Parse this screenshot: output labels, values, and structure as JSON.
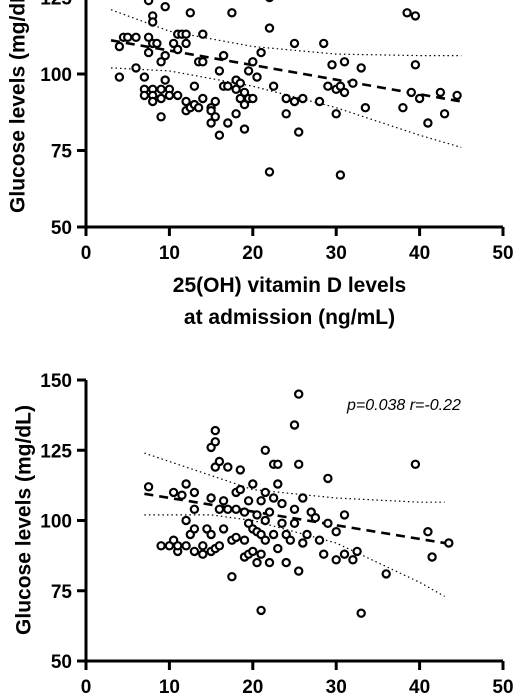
{
  "chart_data": [
    {
      "type": "scatter",
      "title": "",
      "xlabel_lines": [
        "25(OH) vitamin D levels",
        "at admission (ng/mL)"
      ],
      "ylabel": "Glucose levels (mg/dL)",
      "xlim": [
        0,
        50
      ],
      "ylim": [
        50,
        150
      ],
      "x_ticks": [
        "0",
        "10",
        "20",
        "30",
        "40",
        "50"
      ],
      "y_ticks": [
        "50",
        "75",
        "100",
        "125"
      ],
      "annotation": "",
      "regression": {
        "x": [
          3,
          45
        ],
        "y": [
          111,
          91
        ]
      },
      "ci_upper": [
        [
          3,
          121
        ],
        [
          10,
          114
        ],
        [
          20,
          109
        ],
        [
          30,
          106.5
        ],
        [
          40,
          106
        ],
        [
          45,
          106
        ]
      ],
      "ci_lower": [
        [
          3,
          102
        ],
        [
          10,
          101
        ],
        [
          20,
          96
        ],
        [
          30,
          89
        ],
        [
          40,
          80
        ],
        [
          45,
          76
        ]
      ],
      "points": [
        [
          4,
          99
        ],
        [
          4,
          109
        ],
        [
          4.5,
          112
        ],
        [
          5,
          112
        ],
        [
          6,
          102
        ],
        [
          6,
          112
        ],
        [
          7,
          99
        ],
        [
          7,
          95
        ],
        [
          7,
          93
        ],
        [
          7.5,
          124
        ],
        [
          7.5,
          112
        ],
        [
          7.5,
          107
        ],
        [
          8,
          119
        ],
        [
          8,
          117
        ],
        [
          8,
          110
        ],
        [
          8,
          95
        ],
        [
          8,
          93
        ],
        [
          8,
          91
        ],
        [
          8.5,
          110
        ],
        [
          9,
          104
        ],
        [
          9,
          95
        ],
        [
          9,
          92
        ],
        [
          9,
          86
        ],
        [
          9.5,
          122
        ],
        [
          9.5,
          106
        ],
        [
          9.5,
          98
        ],
        [
          10,
          95
        ],
        [
          10,
          93
        ],
        [
          10.5,
          110
        ],
        [
          11,
          113
        ],
        [
          11,
          108
        ],
        [
          11,
          93
        ],
        [
          11.5,
          113
        ],
        [
          12,
          113
        ],
        [
          12,
          110
        ],
        [
          12,
          91
        ],
        [
          12,
          88
        ],
        [
          12.5,
          120
        ],
        [
          12.5,
          89
        ],
        [
          13,
          96
        ],
        [
          13,
          90
        ],
        [
          13.5,
          104
        ],
        [
          13.5,
          89
        ],
        [
          14,
          113
        ],
        [
          14,
          104
        ],
        [
          14,
          92
        ],
        [
          15,
          89
        ],
        [
          15,
          88
        ],
        [
          15,
          84
        ],
        [
          15.5,
          91
        ],
        [
          15.5,
          86
        ],
        [
          16,
          101
        ],
        [
          16,
          80
        ],
        [
          16.5,
          106
        ],
        [
          16.5,
          96
        ],
        [
          17,
          128
        ],
        [
          17,
          96
        ],
        [
          17,
          84
        ],
        [
          17.5,
          120
        ],
        [
          18,
          98
        ],
        [
          18,
          95
        ],
        [
          18,
          87
        ],
        [
          18.5,
          97
        ],
        [
          18.5,
          92
        ],
        [
          19,
          94
        ],
        [
          19,
          90
        ],
        [
          19,
          82
        ],
        [
          19.5,
          101
        ],
        [
          19.5,
          92
        ],
        [
          20,
          104
        ],
        [
          20,
          92
        ],
        [
          20.5,
          99
        ],
        [
          21,
          107
        ],
        [
          22,
          125
        ],
        [
          22,
          115
        ],
        [
          22,
          68
        ],
        [
          22.5,
          96
        ],
        [
          24,
          92
        ],
        [
          24,
          87
        ],
        [
          25,
          110
        ],
        [
          25,
          91
        ],
        [
          25.5,
          81
        ],
        [
          26,
          92
        ],
        [
          28,
          91
        ],
        [
          28.5,
          110
        ],
        [
          29,
          96
        ],
        [
          29.5,
          103
        ],
        [
          30,
          95
        ],
        [
          30,
          87
        ],
        [
          30.5,
          96
        ],
        [
          30.5,
          67
        ],
        [
          31,
          104
        ],
        [
          31,
          94
        ],
        [
          32,
          97
        ],
        [
          33,
          102
        ],
        [
          33.5,
          89
        ],
        [
          38,
          89
        ],
        [
          38.5,
          120
        ],
        [
          39,
          94
        ],
        [
          39.5,
          119
        ],
        [
          39.5,
          103
        ],
        [
          40,
          92
        ],
        [
          41,
          84
        ],
        [
          42.5,
          94
        ],
        [
          43,
          87
        ],
        [
          44.5,
          93
        ]
      ]
    },
    {
      "type": "scatter",
      "title": "",
      "xlabel_lines": [],
      "ylabel": "Glucose levels (mg/dL)",
      "xlim": [
        0,
        50
      ],
      "ylim": [
        50,
        150
      ],
      "x_ticks": [
        "0",
        "10",
        "20",
        "30",
        "40",
        "50"
      ],
      "y_ticks": [
        "50",
        "75",
        "100",
        "125",
        "150"
      ],
      "annotation": "p=0.038 r=-0.22",
      "regression": {
        "x": [
          7,
          44
        ],
        "y": [
          109.5,
          91.5
        ]
      },
      "ci_upper": [
        [
          7,
          124
        ],
        [
          15,
          116
        ],
        [
          20,
          111
        ],
        [
          30,
          108
        ],
        [
          40,
          106.5
        ],
        [
          43,
          106.5
        ]
      ],
      "ci_lower": [
        [
          7,
          102
        ],
        [
          15,
          102
        ],
        [
          20,
          100
        ],
        [
          30,
          92
        ],
        [
          40,
          78
        ],
        [
          43,
          73
        ]
      ],
      "points": [
        [
          7.5,
          112
        ],
        [
          9,
          91
        ],
        [
          10,
          91
        ],
        [
          10.5,
          110
        ],
        [
          10.5,
          93
        ],
        [
          11,
          89
        ],
        [
          11,
          91
        ],
        [
          11.5,
          109
        ],
        [
          12,
          113
        ],
        [
          12,
          100
        ],
        [
          12,
          91
        ],
        [
          12.5,
          95
        ],
        [
          13,
          110
        ],
        [
          13,
          104
        ],
        [
          13,
          97
        ],
        [
          13,
          89
        ],
        [
          14,
          91
        ],
        [
          14,
          88
        ],
        [
          14.5,
          97
        ],
        [
          15,
          126
        ],
        [
          15,
          108
        ],
        [
          15,
          95
        ],
        [
          15,
          89
        ],
        [
          15.5,
          132
        ],
        [
          15.5,
          128
        ],
        [
          15.5,
          119
        ],
        [
          15.5,
          90
        ],
        [
          16,
          121
        ],
        [
          16,
          104
        ],
        [
          16,
          91
        ],
        [
          16.5,
          107
        ],
        [
          16.5,
          97
        ],
        [
          17,
          119
        ],
        [
          17,
          104
        ],
        [
          17.5,
          93
        ],
        [
          17.5,
          80
        ],
        [
          18,
          110
        ],
        [
          18,
          104
        ],
        [
          18,
          94
        ],
        [
          18.5,
          118
        ],
        [
          18.5,
          111
        ],
        [
          19,
          103
        ],
        [
          19,
          93
        ],
        [
          19,
          87
        ],
        [
          19.5,
          107
        ],
        [
          19.5,
          99
        ],
        [
          19.5,
          88
        ],
        [
          20,
          113
        ],
        [
          20,
          97
        ],
        [
          20,
          89
        ],
        [
          20.5,
          102
        ],
        [
          20.5,
          96
        ],
        [
          20.5,
          85
        ],
        [
          21,
          107
        ],
        [
          21,
          95
        ],
        [
          21,
          88
        ],
        [
          21,
          68
        ],
        [
          21.5,
          125
        ],
        [
          21.5,
          110
        ],
        [
          21.5,
          100
        ],
        [
          21.5,
          93
        ],
        [
          22,
          103
        ],
        [
          22,
          85
        ],
        [
          22.5,
          120
        ],
        [
          22.5,
          108
        ],
        [
          22.5,
          95
        ],
        [
          23,
          120
        ],
        [
          23,
          113
        ],
        [
          23,
          90
        ],
        [
          23.5,
          106
        ],
        [
          23.5,
          99
        ],
        [
          24,
          95
        ],
        [
          24,
          85
        ],
        [
          24.5,
          93
        ],
        [
          25,
          134
        ],
        [
          25,
          104
        ],
        [
          25,
          99
        ],
        [
          25.5,
          145
        ],
        [
          25.5,
          120
        ],
        [
          25.5,
          82
        ],
        [
          26,
          108
        ],
        [
          26,
          92
        ],
        [
          26.5,
          95
        ],
        [
          27,
          103
        ],
        [
          27.5,
          101
        ],
        [
          28,
          93
        ],
        [
          28.5,
          88
        ],
        [
          29,
          115
        ],
        [
          29,
          99
        ],
        [
          30,
          96
        ],
        [
          30,
          86
        ],
        [
          31,
          102
        ],
        [
          31,
          88
        ],
        [
          32,
          86
        ],
        [
          32.5,
          89
        ],
        [
          33,
          67
        ],
        [
          36,
          81
        ],
        [
          39.5,
          120
        ],
        [
          41,
          96
        ],
        [
          41.5,
          87
        ],
        [
          43.5,
          92
        ]
      ]
    }
  ]
}
